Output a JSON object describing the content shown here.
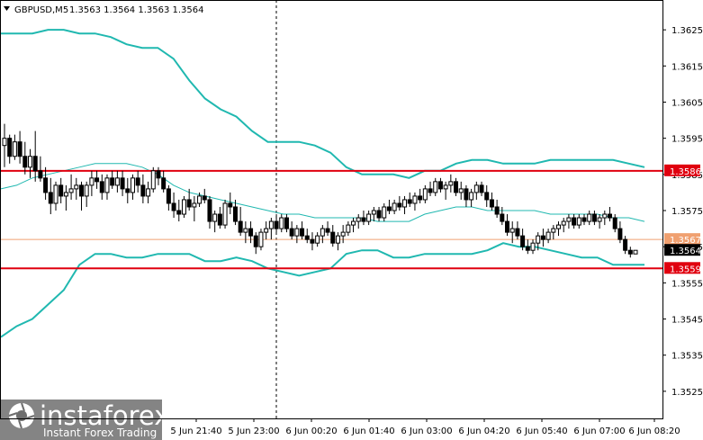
{
  "header": {
    "symbol": "GBPUSD,M5",
    "ohlc": "1.3563 1.3564 1.3563 1.3564"
  },
  "watermark": {
    "brand": "instaforex",
    "tagline": "Instant Forex Trading"
  },
  "chart_data": {
    "type": "candlestick",
    "price_axis": {
      "range": [
        1.35175,
        1.3633
      ],
      "ticks": [
        "1.3625",
        "1.3615",
        "1.3605",
        "1.3595",
        "1.3585",
        "1.3575",
        "1.3565",
        "1.3555",
        "1.3545",
        "1.3535",
        "1.3525"
      ]
    },
    "time_axis": {
      "labels": [
        "5 Jun 21:40",
        "5 Jun 23:00",
        "6 Jun 00:20",
        "6 Jun 01:40",
        "6 Jun 03:00",
        "6 Jun 04:20",
        "6 Jun 05:40",
        "6 Jun 07:00",
        "6 Jun 08:20"
      ]
    },
    "levels": [
      {
        "value": 1.3586,
        "label": "1.3586",
        "color": "#e0000f"
      },
      {
        "value": 1.3567,
        "label": "1.3567",
        "color": "#f0a070"
      },
      {
        "value": 1.3559,
        "label": "1.3559",
        "color": "#e0000f"
      }
    ],
    "current_price": {
      "value": 1.3564,
      "label": "1.3564"
    },
    "bollinger": {
      "color": "#20b8b0",
      "upper": [
        1.3624,
        1.3624,
        1.3624,
        1.3625,
        1.3625,
        1.3624,
        1.3624,
        1.3623,
        1.3621,
        1.362,
        1.362,
        1.3617,
        1.3611,
        1.3606,
        1.3603,
        1.3601,
        1.3597,
        1.3594,
        1.3594,
        1.3594,
        1.3593,
        1.3591,
        1.3587,
        1.3585,
        1.3585,
        1.3585,
        1.3584,
        1.3586,
        1.3586,
        1.3588,
        1.3589,
        1.3589,
        1.3588,
        1.3588,
        1.3588,
        1.3589,
        1.3589,
        1.3589,
        1.3589,
        1.3589,
        1.3588,
        1.3587
      ],
      "middle": [
        1.3581,
        1.3582,
        1.3584,
        1.3585,
        1.3586,
        1.3587,
        1.3588,
        1.3588,
        1.3588,
        1.3587,
        1.3585,
        1.3582,
        1.358,
        1.3579,
        1.3578,
        1.3577,
        1.3576,
        1.3575,
        1.3574,
        1.3574,
        1.3573,
        1.3573,
        1.3573,
        1.3573,
        1.3572,
        1.3572,
        1.3572,
        1.3574,
        1.3575,
        1.3576,
        1.3576,
        1.3575,
        1.3575,
        1.3575,
        1.3575,
        1.3574,
        1.3574,
        1.3574,
        1.3574,
        1.3573,
        1.3573,
        1.3572
      ],
      "lower": [
        1.354,
        1.3543,
        1.3545,
        1.3549,
        1.3553,
        1.356,
        1.3563,
        1.3563,
        1.3562,
        1.3562,
        1.3563,
        1.3563,
        1.3563,
        1.3561,
        1.3561,
        1.3562,
        1.3561,
        1.3559,
        1.3558,
        1.3557,
        1.3558,
        1.3559,
        1.3563,
        1.3564,
        1.3564,
        1.3562,
        1.3562,
        1.3563,
        1.3563,
        1.3563,
        1.3563,
        1.3564,
        1.3566,
        1.3565,
        1.3565,
        1.3564,
        1.3563,
        1.3562,
        1.3562,
        1.356,
        1.356,
        1.356
      ]
    },
    "candles": [
      [
        1.3593,
        1.3599,
        1.3587,
        1.3595
      ],
      [
        1.3595,
        1.3596,
        1.3588,
        1.359
      ],
      [
        1.359,
        1.3596,
        1.3589,
        1.3594
      ],
      [
        1.3594,
        1.3597,
        1.3588,
        1.359
      ],
      [
        1.359,
        1.3594,
        1.3585,
        1.3587
      ],
      [
        1.3587,
        1.3592,
        1.3584,
        1.359
      ],
      [
        1.359,
        1.3597,
        1.3583,
        1.3586
      ],
      [
        1.3586,
        1.359,
        1.3583,
        1.3584
      ],
      [
        1.3584,
        1.3587,
        1.3578,
        1.358
      ],
      [
        1.358,
        1.3584,
        1.3574,
        1.3577
      ],
      [
        1.3577,
        1.3583,
        1.3575,
        1.3582
      ],
      [
        1.3582,
        1.3584,
        1.3577,
        1.3579
      ],
      [
        1.3579,
        1.3582,
        1.3575,
        1.358
      ],
      [
        1.358,
        1.3585,
        1.3578,
        1.3581
      ],
      [
        1.3581,
        1.3584,
        1.3578,
        1.3582
      ],
      [
        1.3582,
        1.3583,
        1.3575,
        1.3579
      ],
      [
        1.3579,
        1.3583,
        1.3576,
        1.3582
      ],
      [
        1.3582,
        1.3586,
        1.3579,
        1.3584
      ],
      [
        1.3584,
        1.3586,
        1.3581,
        1.3583
      ],
      [
        1.3583,
        1.3585,
        1.3578,
        1.358
      ],
      [
        1.358,
        1.3585,
        1.3578,
        1.3584
      ],
      [
        1.3584,
        1.3586,
        1.3581,
        1.3582
      ],
      [
        1.3582,
        1.3586,
        1.358,
        1.3584
      ],
      [
        1.3584,
        1.3586,
        1.3579,
        1.3581
      ],
      [
        1.3581,
        1.3584,
        1.3577,
        1.358
      ],
      [
        1.358,
        1.3585,
        1.3578,
        1.3584
      ],
      [
        1.3584,
        1.3586,
        1.358,
        1.3582
      ],
      [
        1.3582,
        1.3585,
        1.3577,
        1.3579
      ],
      [
        1.3579,
        1.3583,
        1.3577,
        1.3581
      ],
      [
        1.3581,
        1.3587,
        1.358,
        1.3586
      ],
      [
        1.3586,
        1.3587,
        1.3582,
        1.3584
      ],
      [
        1.3584,
        1.3586,
        1.358,
        1.3581
      ],
      [
        1.3581,
        1.3582,
        1.3575,
        1.3577
      ],
      [
        1.3577,
        1.358,
        1.3573,
        1.3575
      ],
      [
        1.3575,
        1.3578,
        1.3572,
        1.3574
      ],
      [
        1.3574,
        1.3579,
        1.3573,
        1.3578
      ],
      [
        1.3578,
        1.3581,
        1.3575,
        1.3576
      ],
      [
        1.3576,
        1.3579,
        1.3572,
        1.3577
      ],
      [
        1.3577,
        1.358,
        1.3576,
        1.3579
      ],
      [
        1.3579,
        1.3581,
        1.3577,
        1.3578
      ],
      [
        1.3578,
        1.3579,
        1.357,
        1.3572
      ],
      [
        1.3572,
        1.3575,
        1.3569,
        1.3574
      ],
      [
        1.3574,
        1.3576,
        1.357,
        1.3571
      ],
      [
        1.3571,
        1.3578,
        1.357,
        1.3577
      ],
      [
        1.3577,
        1.358,
        1.3574,
        1.3576
      ],
      [
        1.3576,
        1.3578,
        1.3571,
        1.3572
      ],
      [
        1.3572,
        1.3576,
        1.3568,
        1.3569
      ],
      [
        1.3569,
        1.3572,
        1.3566,
        1.357
      ],
      [
        1.357,
        1.3572,
        1.3566,
        1.3568
      ],
      [
        1.3568,
        1.3569,
        1.3563,
        1.3565
      ],
      [
        1.3565,
        1.357,
        1.3564,
        1.3569
      ],
      [
        1.3569,
        1.3572,
        1.3567,
        1.357
      ],
      [
        1.357,
        1.3573,
        1.3567,
        1.3572
      ],
      [
        1.3572,
        1.3574,
        1.3569,
        1.357
      ],
      [
        1.357,
        1.3574,
        1.3569,
        1.3573
      ],
      [
        1.3573,
        1.3574,
        1.3569,
        1.357
      ],
      [
        1.357,
        1.3572,
        1.3567,
        1.3568
      ],
      [
        1.3568,
        1.3571,
        1.3566,
        1.357
      ],
      [
        1.357,
        1.3572,
        1.3567,
        1.3568
      ],
      [
        1.3568,
        1.357,
        1.3566,
        1.3567
      ],
      [
        1.3567,
        1.3569,
        1.3564,
        1.3566
      ],
      [
        1.3566,
        1.3569,
        1.3565,
        1.3568
      ],
      [
        1.3568,
        1.3571,
        1.3566,
        1.357
      ],
      [
        1.357,
        1.3572,
        1.3568,
        1.3569
      ],
      [
        1.3569,
        1.3571,
        1.3565,
        1.3566
      ],
      [
        1.3566,
        1.3569,
        1.3564,
        1.3568
      ],
      [
        1.3568,
        1.3571,
        1.3566,
        1.3569
      ],
      [
        1.3569,
        1.3572,
        1.3568,
        1.3571
      ],
      [
        1.3571,
        1.3573,
        1.3569,
        1.3572
      ],
      [
        1.3572,
        1.3574,
        1.357,
        1.3573
      ],
      [
        1.3573,
        1.3575,
        1.3571,
        1.3572
      ],
      [
        1.3572,
        1.3575,
        1.3571,
        1.3574
      ],
      [
        1.3574,
        1.3576,
        1.3572,
        1.3575
      ],
      [
        1.3575,
        1.3576,
        1.3572,
        1.3573
      ],
      [
        1.3573,
        1.3577,
        1.3572,
        1.3576
      ],
      [
        1.3576,
        1.3578,
        1.3574,
        1.3575
      ],
      [
        1.3575,
        1.3578,
        1.3574,
        1.3577
      ],
      [
        1.3577,
        1.3579,
        1.3575,
        1.3576
      ],
      [
        1.3576,
        1.3579,
        1.3574,
        1.3578
      ],
      [
        1.3578,
        1.358,
        1.3576,
        1.3577
      ],
      [
        1.3577,
        1.358,
        1.3575,
        1.3579
      ],
      [
        1.3579,
        1.3581,
        1.3577,
        1.3578
      ],
      [
        1.3578,
        1.3582,
        1.3577,
        1.3581
      ],
      [
        1.3581,
        1.3583,
        1.3579,
        1.358
      ],
      [
        1.358,
        1.3584,
        1.3579,
        1.3583
      ],
      [
        1.3583,
        1.3584,
        1.358,
        1.3581
      ],
      [
        1.3581,
        1.3583,
        1.3578,
        1.3582
      ],
      [
        1.3582,
        1.3585,
        1.358,
        1.3583
      ],
      [
        1.3583,
        1.3584,
        1.3579,
        1.358
      ],
      [
        1.358,
        1.3583,
        1.3578,
        1.3581
      ],
      [
        1.3581,
        1.3582,
        1.3576,
        1.3578
      ],
      [
        1.3578,
        1.3581,
        1.3576,
        1.358
      ],
      [
        1.358,
        1.3583,
        1.3578,
        1.3582
      ],
      [
        1.3582,
        1.3583,
        1.3579,
        1.358
      ],
      [
        1.358,
        1.3582,
        1.3576,
        1.3578
      ],
      [
        1.3578,
        1.358,
        1.3575,
        1.3576
      ],
      [
        1.3576,
        1.3578,
        1.3573,
        1.3574
      ],
      [
        1.3574,
        1.3576,
        1.3571,
        1.3572
      ],
      [
        1.3572,
        1.3574,
        1.3568,
        1.3569
      ],
      [
        1.3569,
        1.3572,
        1.3566,
        1.357
      ],
      [
        1.357,
        1.3572,
        1.3567,
        1.3568
      ],
      [
        1.3568,
        1.357,
        1.3564,
        1.3565
      ],
      [
        1.3565,
        1.3567,
        1.3563,
        1.3564
      ],
      [
        1.3564,
        1.3567,
        1.3563,
        1.3566
      ],
      [
        1.3566,
        1.3569,
        1.3564,
        1.3568
      ],
      [
        1.3568,
        1.357,
        1.3565,
        1.3567
      ],
      [
        1.3567,
        1.357,
        1.3566,
        1.3569
      ],
      [
        1.3569,
        1.3571,
        1.3567,
        1.357
      ],
      [
        1.357,
        1.3572,
        1.3568,
        1.3571
      ],
      [
        1.3571,
        1.3573,
        1.3569,
        1.3572
      ],
      [
        1.3572,
        1.3574,
        1.357,
        1.3573
      ],
      [
        1.3573,
        1.3574,
        1.357,
        1.3571
      ],
      [
        1.3571,
        1.3574,
        1.357,
        1.3573
      ],
      [
        1.3573,
        1.3574,
        1.3571,
        1.3572
      ],
      [
        1.3572,
        1.3575,
        1.3571,
        1.3574
      ],
      [
        1.3574,
        1.3575,
        1.3571,
        1.3572
      ],
      [
        1.3572,
        1.3574,
        1.357,
        1.3573
      ],
      [
        1.3573,
        1.3575,
        1.3571,
        1.3574
      ],
      [
        1.3574,
        1.3576,
        1.3572,
        1.3573
      ],
      [
        1.3573,
        1.3574,
        1.3569,
        1.357
      ],
      [
        1.357,
        1.3572,
        1.3566,
        1.3567
      ],
      [
        1.3567,
        1.3568,
        1.3563,
        1.3564
      ],
      [
        1.3564,
        1.3565,
        1.3562,
        1.3563
      ],
      [
        1.3563,
        1.3564,
        1.3563,
        1.3564
      ]
    ]
  }
}
